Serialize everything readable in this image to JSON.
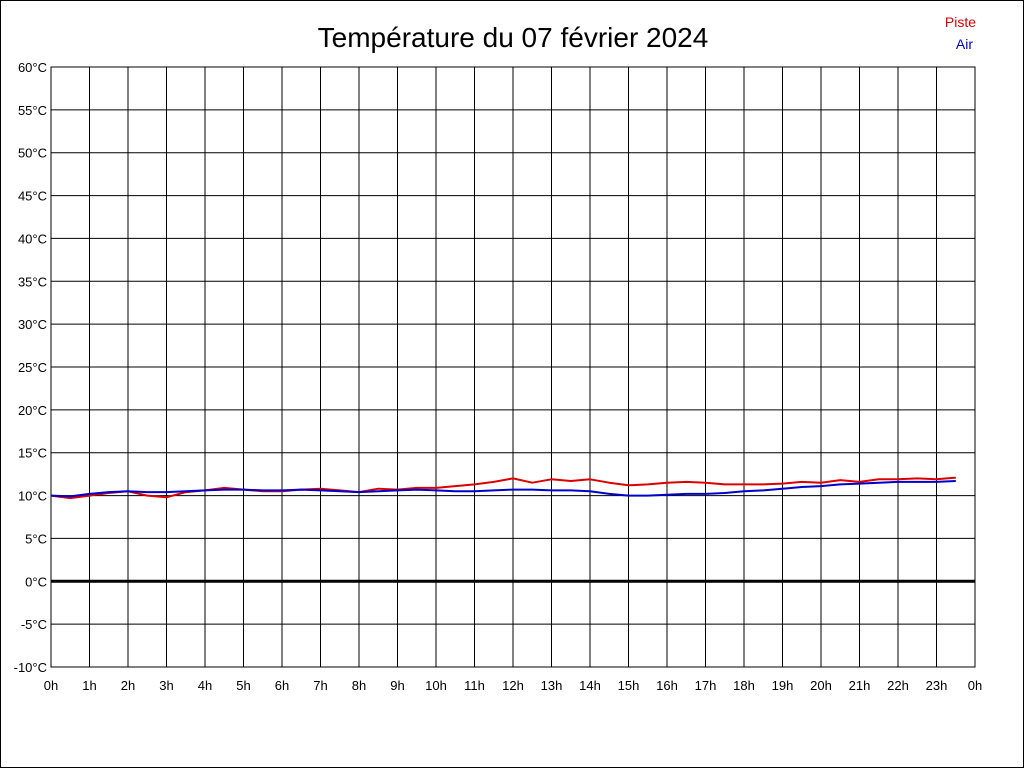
{
  "chart_data": {
    "type": "line",
    "title": "Température du 07 février 2024",
    "xlabel": "",
    "ylabel": "",
    "x_ticks": [
      "0h",
      "1h",
      "2h",
      "3h",
      "4h",
      "5h",
      "6h",
      "7h",
      "8h",
      "9h",
      "10h",
      "11h",
      "12h",
      "13h",
      "14h",
      "15h",
      "16h",
      "17h",
      "18h",
      "19h",
      "20h",
      "21h",
      "22h",
      "23h",
      "0h"
    ],
    "y_ticks": [
      "60°C",
      "55°C",
      "50°C",
      "45°C",
      "40°C",
      "35°C",
      "30°C",
      "25°C",
      "20°C",
      "15°C",
      "10°C",
      "5°C",
      "0°C",
      "-5°C",
      "-10°C"
    ],
    "xlim": [
      0,
      24
    ],
    "ylim": [
      -10,
      60
    ],
    "grid": true,
    "legend_position": "top-right",
    "zero_line": true,
    "series": [
      {
        "name": "Piste",
        "color": "#dd0000",
        "x": [
          0,
          0.5,
          1,
          1.5,
          2,
          2.5,
          3,
          3.5,
          4,
          4.5,
          5,
          5.5,
          6,
          6.5,
          7,
          7.5,
          8,
          8.5,
          9,
          9.5,
          10,
          10.5,
          11,
          11.5,
          12,
          12.5,
          13,
          13.5,
          14,
          14.5,
          15,
          15.5,
          16,
          16.5,
          17,
          17.5,
          18,
          18.5,
          19,
          19.5,
          20,
          20.5,
          21,
          21.5,
          22,
          22.5,
          23,
          23.5
        ],
        "values": [
          10.0,
          9.7,
          10.0,
          10.3,
          10.5,
          10.0,
          9.8,
          10.4,
          10.6,
          10.9,
          10.7,
          10.5,
          10.5,
          10.7,
          10.8,
          10.6,
          10.4,
          10.8,
          10.7,
          10.9,
          10.9,
          11.1,
          11.3,
          11.6,
          12.0,
          11.5,
          11.9,
          11.7,
          11.9,
          11.5,
          11.2,
          11.3,
          11.5,
          11.6,
          11.5,
          11.3,
          11.3,
          11.3,
          11.4,
          11.6,
          11.5,
          11.8,
          11.6,
          11.9,
          11.9,
          12.0,
          11.9,
          12.1
        ]
      },
      {
        "name": "Air",
        "color": "#0000cc",
        "x": [
          0,
          0.5,
          1,
          1.5,
          2,
          2.5,
          3,
          3.5,
          4,
          4.5,
          5,
          5.5,
          6,
          6.5,
          7,
          7.5,
          8,
          8.5,
          9,
          9.5,
          10,
          10.5,
          11,
          11.5,
          12,
          12.5,
          13,
          13.5,
          14,
          14.5,
          15,
          15.5,
          16,
          16.5,
          17,
          17.5,
          18,
          18.5,
          19,
          19.5,
          20,
          20.5,
          21,
          21.5,
          22,
          22.5,
          23,
          23.5
        ],
        "values": [
          10.0,
          9.9,
          10.2,
          10.4,
          10.5,
          10.4,
          10.4,
          10.5,
          10.6,
          10.7,
          10.7,
          10.6,
          10.6,
          10.7,
          10.6,
          10.5,
          10.4,
          10.5,
          10.6,
          10.7,
          10.6,
          10.5,
          10.5,
          10.6,
          10.7,
          10.7,
          10.6,
          10.6,
          10.5,
          10.2,
          10.0,
          10.0,
          10.1,
          10.2,
          10.2,
          10.3,
          10.5,
          10.6,
          10.8,
          11.0,
          11.1,
          11.3,
          11.4,
          11.5,
          11.6,
          11.6,
          11.6,
          11.7
        ]
      }
    ]
  }
}
